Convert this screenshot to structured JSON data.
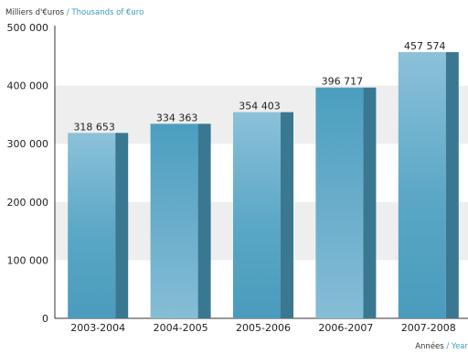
{
  "chart_data": {
    "type": "bar",
    "ylabel_fr": "Milliers d'€uros",
    "ylabel_sep": " / ",
    "ylabel_en": "Thousands of €uro",
    "xlabel_fr": "Années",
    "xlabel_sep": " / ",
    "xlabel_en": "Year",
    "categories": [
      "2003-2004",
      "2004-2005",
      "2005-2006",
      "2006-2007",
      "2007-2008"
    ],
    "values": [
      318653,
      334363,
      354403,
      396717,
      457574
    ],
    "value_labels": [
      "318 653",
      "334 363",
      "354 403",
      "396 717",
      "457 574"
    ],
    "ylim": [
      0,
      500000
    ],
    "yticks": [
      0,
      100000,
      200000,
      300000,
      400000,
      500000
    ],
    "ytick_labels": [
      "0",
      "100 000",
      "200 000",
      "300 000",
      "400 000",
      "500 000"
    ],
    "grid": "alternating horizontal bands",
    "colors": {
      "bar_front_light": "#86bdd6",
      "bar_front_dark": "#4b9ec0",
      "bar_side": "#3a7891",
      "band": "#eeeeef"
    }
  }
}
